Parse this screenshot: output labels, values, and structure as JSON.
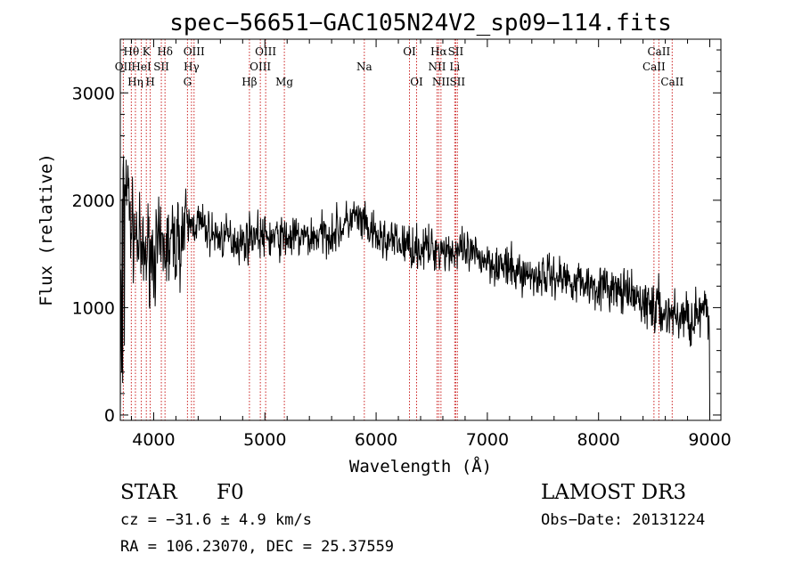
{
  "chart_data": {
    "type": "line",
    "title": "spec−56651−GAC105N24V2_sp09−114.fits",
    "xlabel": "Wavelength (Å)",
    "ylabel": "Flux (relative)",
    "xlim": [
      3700,
      9100
    ],
    "ylim": [
      -50,
      3500
    ],
    "x_ticks": [
      4000,
      5000,
      6000,
      7000,
      8000,
      9000
    ],
    "y_ticks": [
      0,
      1000,
      2000,
      3000
    ],
    "spectrum_control_points": [
      [
        3700,
        1300
      ],
      [
        3720,
        2000
      ],
      [
        3760,
        2150
      ],
      [
        3800,
        1750
      ],
      [
        3850,
        1650
      ],
      [
        3900,
        1450
      ],
      [
        3950,
        1550
      ],
      [
        4000,
        1500
      ],
      [
        4100,
        1550
      ],
      [
        4200,
        1600
      ],
      [
        4300,
        1750
      ],
      [
        4400,
        1800
      ],
      [
        4500,
        1700
      ],
      [
        4600,
        1650
      ],
      [
        4700,
        1650
      ],
      [
        4800,
        1600
      ],
      [
        4900,
        1700
      ],
      [
        5000,
        1650
      ],
      [
        5200,
        1650
      ],
      [
        5400,
        1650
      ],
      [
        5600,
        1700
      ],
      [
        5700,
        1750
      ],
      [
        5800,
        1850
      ],
      [
        5900,
        1750
      ],
      [
        6000,
        1650
      ],
      [
        6200,
        1600
      ],
      [
        6400,
        1550
      ],
      [
        6600,
        1550
      ],
      [
        6800,
        1500
      ],
      [
        7000,
        1450
      ],
      [
        7200,
        1350
      ],
      [
        7400,
        1300
      ],
      [
        7600,
        1300
      ],
      [
        7800,
        1250
      ],
      [
        8000,
        1200
      ],
      [
        8200,
        1150
      ],
      [
        8400,
        1050
      ],
      [
        8600,
        950
      ],
      [
        8800,
        900
      ],
      [
        8950,
        950
      ],
      [
        9000,
        850
      ]
    ],
    "spectrum_sample_step": 4,
    "noise_seed": 7,
    "lines": [
      {
        "label": "OII",
        "wavelength": 3727,
        "row": 2
      },
      {
        "label": "Hη",
        "wavelength": 3836,
        "row": 3
      },
      {
        "label": "Hθ",
        "wavelength": 3799,
        "row": 1
      },
      {
        "label": "K",
        "wavelength": 3934,
        "row": 1
      },
      {
        "label": "H",
        "wavelength": 3969,
        "row": 3
      },
      {
        "label": "HeI",
        "wavelength": 3889,
        "row": 2
      },
      {
        "label": "SII",
        "wavelength": 4069,
        "row": 2
      },
      {
        "label": "Hδ",
        "wavelength": 4102,
        "row": 1
      },
      {
        "label": "OIII",
        "wavelength": 4363,
        "row": 1
      },
      {
        "label": "Hγ",
        "wavelength": 4340,
        "row": 2
      },
      {
        "label": "G",
        "wavelength": 4304,
        "row": 3
      },
      {
        "label": "Hβ",
        "wavelength": 4861,
        "row": 3
      },
      {
        "label": "OIII",
        "wavelength": 5007,
        "row": 1
      },
      {
        "label": "OIII",
        "wavelength": 4959,
        "row": 2
      },
      {
        "label": "Mg",
        "wavelength": 5175,
        "row": 3
      },
      {
        "label": "Na",
        "wavelength": 5894,
        "row": 2
      },
      {
        "label": "OI",
        "wavelength": 6300,
        "row": 1
      },
      {
        "label": "OI",
        "wavelength": 6364,
        "row": 3
      },
      {
        "label": "Hα",
        "wavelength": 6563,
        "row": 1
      },
      {
        "label": "NII",
        "wavelength": 6548,
        "row": 2
      },
      {
        "label": "NII",
        "wavelength": 6583,
        "row": 3
      },
      {
        "label": "SII",
        "wavelength": 6716,
        "row": 1
      },
      {
        "label": "Li",
        "wavelength": 6707,
        "row": 2
      },
      {
        "label": "SII",
        "wavelength": 6731,
        "row": 3
      },
      {
        "label": "CaII",
        "wavelength": 8542,
        "row": 1
      },
      {
        "label": "CaII",
        "wavelength": 8498,
        "row": 2
      },
      {
        "label": "CaII",
        "wavelength": 8662,
        "row": 3
      }
    ],
    "line_color": "#cc2222"
  },
  "info": {
    "class": "STAR",
    "subclass": "F0",
    "survey": "LAMOST DR3",
    "cz": "cz = −31.6 ± 4.9 km/s",
    "obs_date": "Obs−Date: 20131224",
    "radec": "RA = 106.23070, DEC =  25.37559"
  }
}
